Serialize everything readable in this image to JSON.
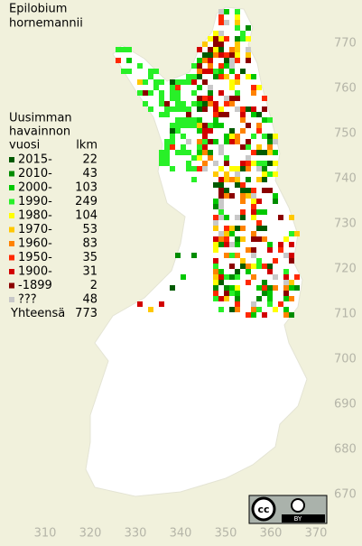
{
  "title": [
    "Epilobium",
    "hornemannii"
  ],
  "legend": {
    "header": [
      "Uusimman",
      "havainnon",
      "vuosi"
    ],
    "count_header": "lkm",
    "items": [
      {
        "label": "2015-",
        "count": 22,
        "color": "#005a00"
      },
      {
        "label": "2010-",
        "count": 43,
        "color": "#008c00"
      },
      {
        "label": "2000-",
        "count": 103,
        "color": "#00c800"
      },
      {
        "label": "1990-",
        "count": 249,
        "color": "#28f028"
      },
      {
        "label": "1980-",
        "count": 104,
        "color": "#ffff00"
      },
      {
        "label": "1970-",
        "count": 53,
        "color": "#ffc800"
      },
      {
        "label": "1960-",
        "count": 83,
        "color": "#ff8200"
      },
      {
        "label": "1950-",
        "count": 35,
        "color": "#ff2800"
      },
      {
        "label": "1900-",
        "count": 31,
        "color": "#d20000"
      },
      {
        "label": "-1899",
        "count": 2,
        "color": "#8c0000"
      },
      {
        "label": "???",
        "count": 48,
        "color": "#c8c8c8"
      }
    ],
    "total_label": "Yhteensä",
    "total": 773
  },
  "axes": {
    "xticks": [
      310,
      320,
      330,
      340,
      350,
      360,
      370
    ],
    "yticks": [
      670,
      680,
      690,
      700,
      710,
      720,
      730,
      740,
      750,
      760,
      770
    ]
  },
  "license": {
    "logo": "cc",
    "badge": "BY"
  }
}
